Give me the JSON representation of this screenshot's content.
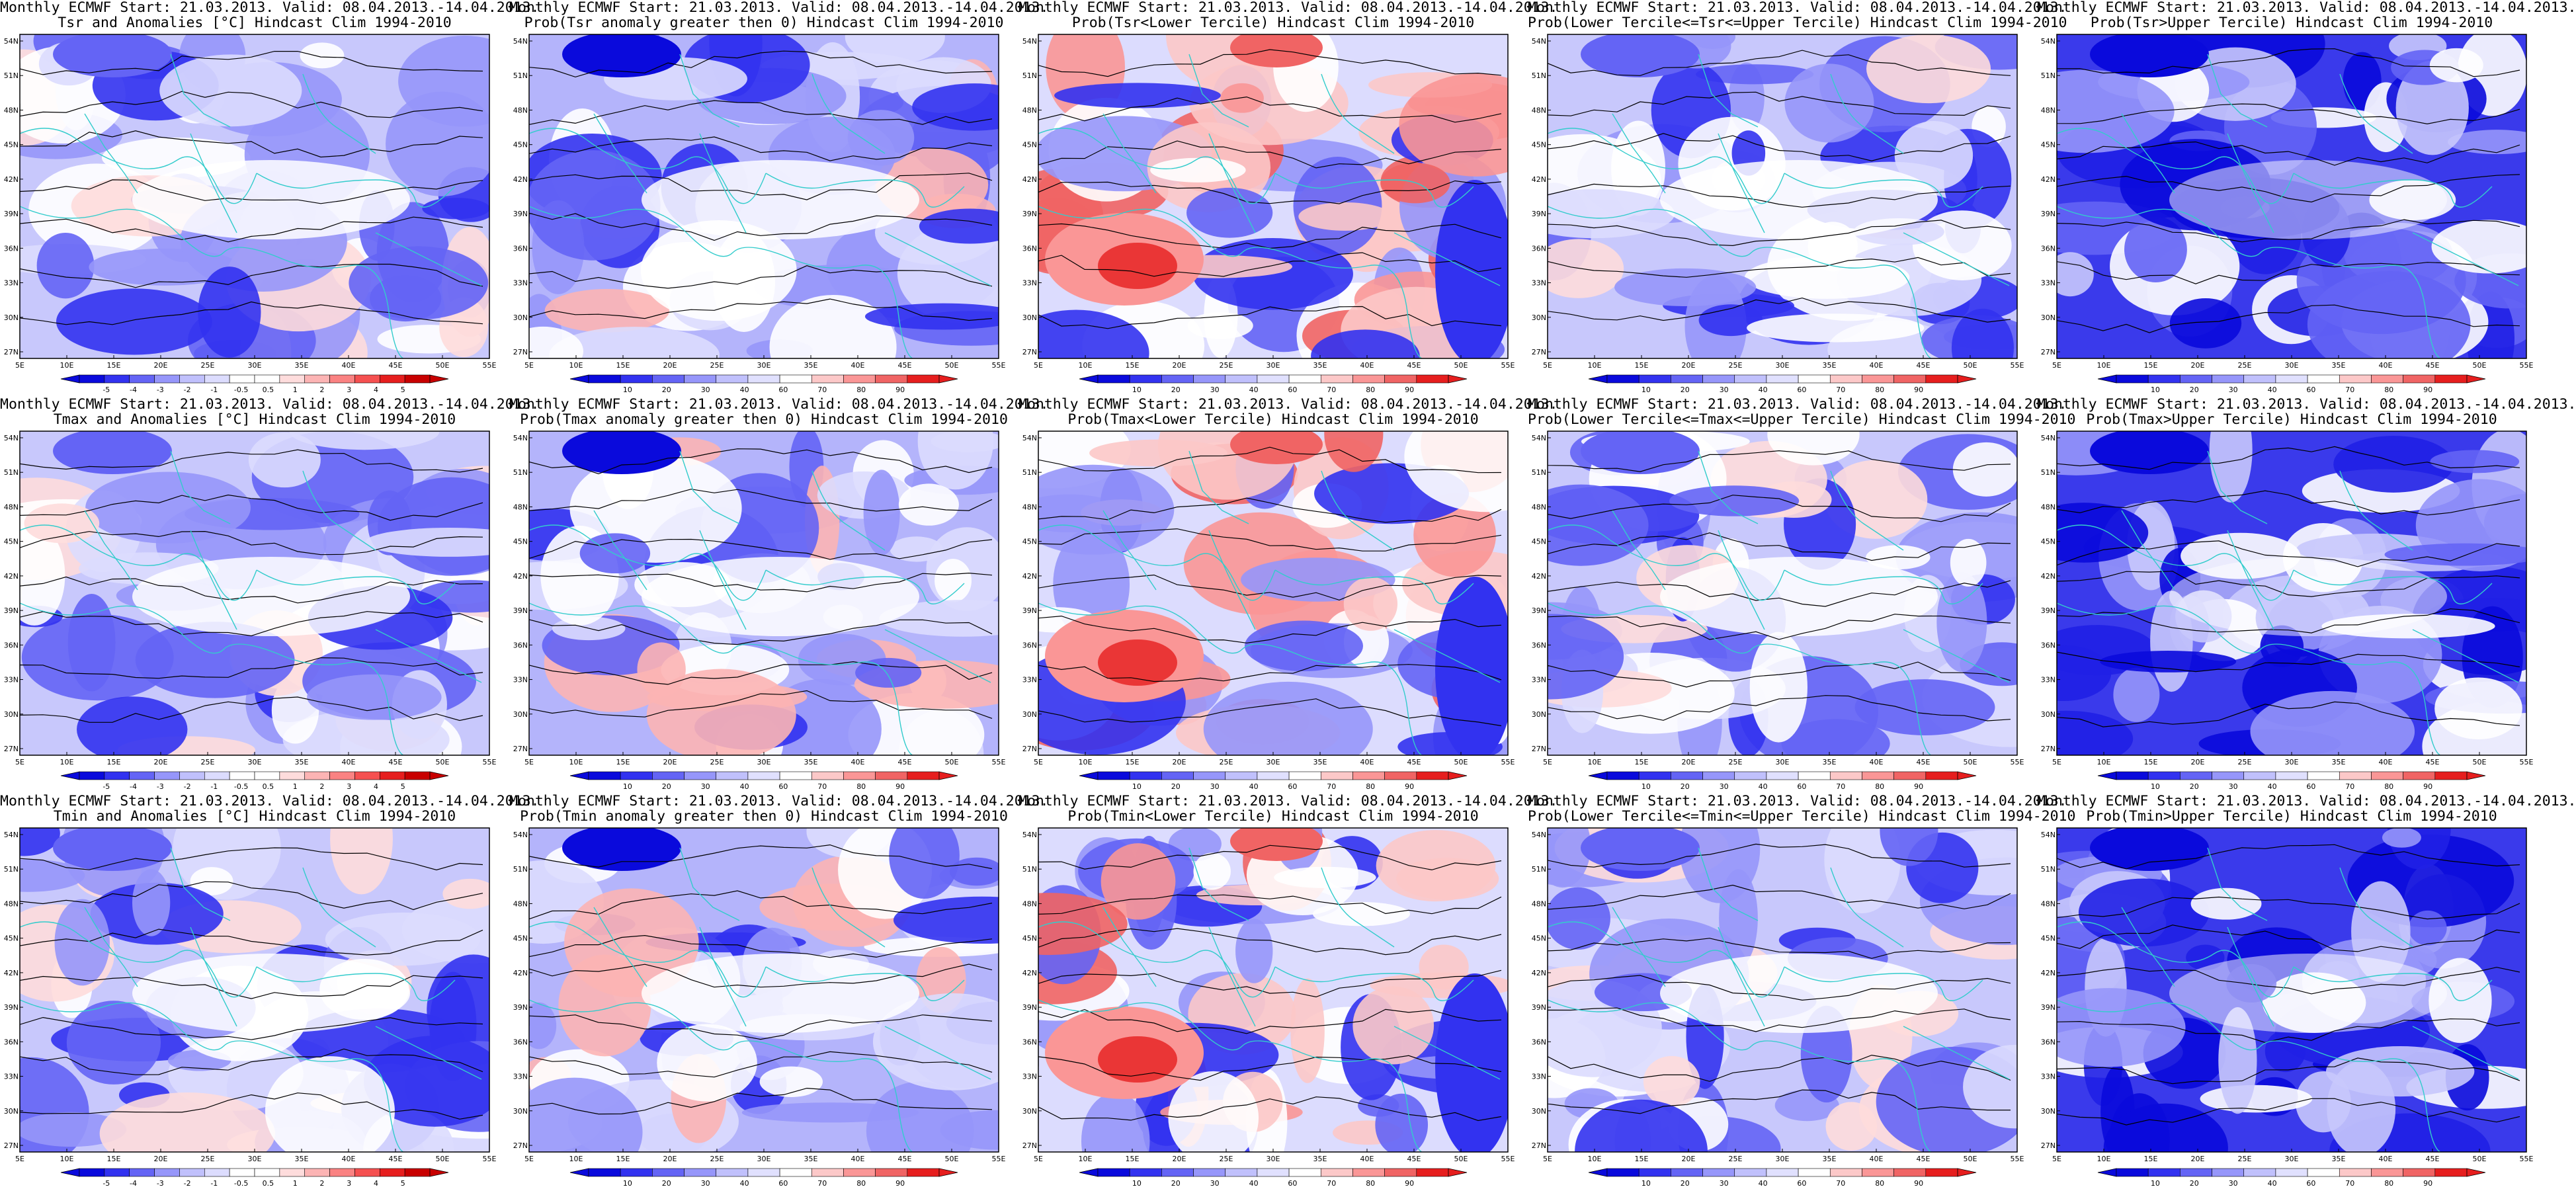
{
  "colors": {
    "scale_anomaly": [
      "#0a0adc",
      "#3232f0",
      "#6464f5",
      "#9696fa",
      "#c0c0fc",
      "#dcdcfe",
      "#ffffff",
      "#ffffff",
      "#fedcdc",
      "#fcb4b4",
      "#fa8282",
      "#f55050",
      "#e61e1e",
      "#c80000"
    ],
    "scale_probability": [
      "#0a0adc",
      "#3232f0",
      "#6464f5",
      "#9696fa",
      "#c0c0fc",
      "#e0e0fe",
      "#ffffff",
      "#fcc8c8",
      "#fa9696",
      "#f06464",
      "#e61e1e"
    ],
    "land_border": "#33cccc",
    "contour": "#000000"
  },
  "map_axes": {
    "lon_labels": [
      "5E",
      "10E",
      "15E",
      "20E",
      "25E",
      "30E",
      "35E",
      "40E",
      "45E",
      "50E",
      "55E"
    ],
    "lat_labels": [
      "54N",
      "51N",
      "48N",
      "45N",
      "42N",
      "39N",
      "36N",
      "33N",
      "30N",
      "27N"
    ]
  },
  "colorbars": {
    "anomaly": {
      "labels": [
        "-5",
        "-4",
        "-3",
        "-2",
        "-1",
        "-0.5",
        "0.5",
        "1",
        "2",
        "3",
        "4",
        "5"
      ]
    },
    "probability": {
      "labels": [
        "10",
        "20",
        "30",
        "40",
        "60",
        "70",
        "80",
        "90"
      ]
    }
  },
  "panels": [
    {
      "line1": "Monthly ECMWF Start: 21.03.2013. Valid: 08.04.2013.-14.04.2013.",
      "line2": "Tsr and Anomalies [°C] Hindcast Clim 1994-2010",
      "scale": "anomaly",
      "tone": "cool_light"
    },
    {
      "line1": "Monthly ECMWF Start: 21.03.2013. Valid: 08.04.2013.-14.04.2013.",
      "line2": "Prob(Tsr anomaly greater then 0) Hindcast Clim 1994-2010",
      "scale": "probability",
      "tone": "cool_mid"
    },
    {
      "line1": "Monthly ECMWF Start: 21.03.2013. Valid: 08.04.2013.-14.04.2013.",
      "line2": "Prob(Tsr<Lower Tercile) Hindcast Clim 1994-2010",
      "scale": "probability",
      "tone": "warm_mixed"
    },
    {
      "line1": "Monthly ECMWF Start: 21.03.2013. Valid: 08.04.2013.-14.04.2013.",
      "line2": "Prob(Lower Tercile<=Tsr<=Upper Tercile) Hindcast Clim 1994-2010",
      "scale": "probability",
      "tone": "cool_light"
    },
    {
      "line1": "Monthly ECMWF Start: 21.03.2013. Valid: 08.04.2013.-14.04.2013.",
      "line2": "Prob(Tsr>Upper Tercile) Hindcast Clim 1994-2010",
      "scale": "probability",
      "tone": "cool_dark"
    },
    {
      "line1": "Monthly ECMWF Start: 21.03.2013. Valid: 08.04.2013.-14.04.2013.",
      "line2": "Tmax and Anomalies [°C] Hindcast Clim 1994-2010",
      "scale": "anomaly",
      "tone": "cool_light"
    },
    {
      "line1": "Monthly ECMWF Start: 21.03.2013. Valid: 08.04.2013.-14.04.2013.",
      "line2": "Prob(Tmax anomaly greater then 0) Hindcast Clim 1994-2010",
      "scale": "probability",
      "tone": "cool_mid"
    },
    {
      "line1": "Monthly ECMWF Start: 21.03.2013. Valid: 08.04.2013.-14.04.2013.",
      "line2": "Prob(Tmax<Lower Tercile) Hindcast Clim 1994-2010",
      "scale": "probability",
      "tone": "warm_mixed"
    },
    {
      "line1": "Monthly ECMWF Start: 21.03.2013. Valid: 08.04.2013.-14.04.2013.",
      "line2": "Prob(Lower Tercile<=Tmax<=Upper Tercile) Hindcast Clim 1994-2010",
      "scale": "probability",
      "tone": "cool_light"
    },
    {
      "line1": "Monthly ECMWF Start: 21.03.2013. Valid: 08.04.2013.-14.04.2013.",
      "line2": "Prob(Tmax>Upper Tercile) Hindcast Clim 1994-2010",
      "scale": "probability",
      "tone": "cool_dark"
    },
    {
      "line1": "Monthly ECMWF Start: 21.03.2013. Valid: 08.04.2013.-14.04.2013.",
      "line2": "Tmin and Anomalies [°C] Hindcast Clim 1994-2010",
      "scale": "anomaly",
      "tone": "cool_light"
    },
    {
      "line1": "Monthly ECMWF Start: 21.03.2013. Valid: 08.04.2013.-14.04.2013.",
      "line2": "Prob(Tmin anomaly greater then 0) Hindcast Clim 1994-2010",
      "scale": "probability",
      "tone": "cool_mid"
    },
    {
      "line1": "Monthly ECMWF Start: 21.03.2013. Valid: 08.04.2013.-14.04.2013.",
      "line2": "Prob(Tmin<Lower Tercile) Hindcast Clim 1994-2010",
      "scale": "probability",
      "tone": "warm_mixed"
    },
    {
      "line1": "Monthly ECMWF Start: 21.03.2013. Valid: 08.04.2013.-14.04.2013.",
      "line2": "Prob(Lower Tercile<=Tmin<=Upper Tercile) Hindcast Clim 1994-2010",
      "scale": "probability",
      "tone": "cool_light"
    },
    {
      "line1": "Monthly ECMWF Start: 21.03.2013. Valid: 08.04.2013.-14.04.2013.",
      "line2": "Prob(Tmin>Upper Tercile) Hindcast Clim 1994-2010",
      "scale": "probability",
      "tone": "cool_dark"
    }
  ]
}
